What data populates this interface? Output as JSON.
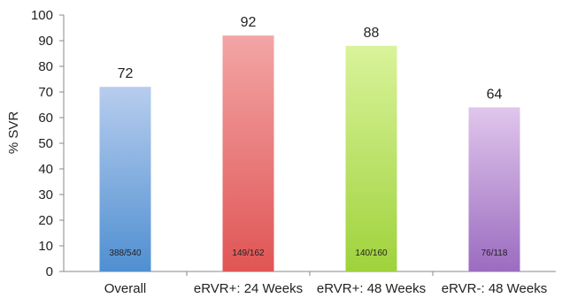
{
  "chart_data": {
    "type": "bar",
    "categories": [
      "Overall",
      "eRVR+: 24 Weeks",
      "eRVR+: 48 Weeks",
      "eRVR-: 48 Weeks"
    ],
    "values": [
      72,
      92,
      88,
      64
    ],
    "bar_annotations": [
      "388/540",
      "149/162",
      "140/160",
      "76/118"
    ],
    "ylabel": "% SVR",
    "xlabel": "",
    "ylim": [
      0,
      100
    ],
    "yticks": [
      0,
      10,
      20,
      30,
      40,
      50,
      60,
      70,
      80,
      90,
      100
    ],
    "grid": false,
    "legend": "none",
    "colors": [
      {
        "top": "#b7cdee",
        "bottom": "#4f8fd1"
      },
      {
        "top": "#f3a5a5",
        "bottom": "#e05555"
      },
      {
        "top": "#d9f39a",
        "bottom": "#9fd23c"
      },
      {
        "top": "#e0c6ec",
        "bottom": "#9b6cc0"
      }
    ]
  }
}
